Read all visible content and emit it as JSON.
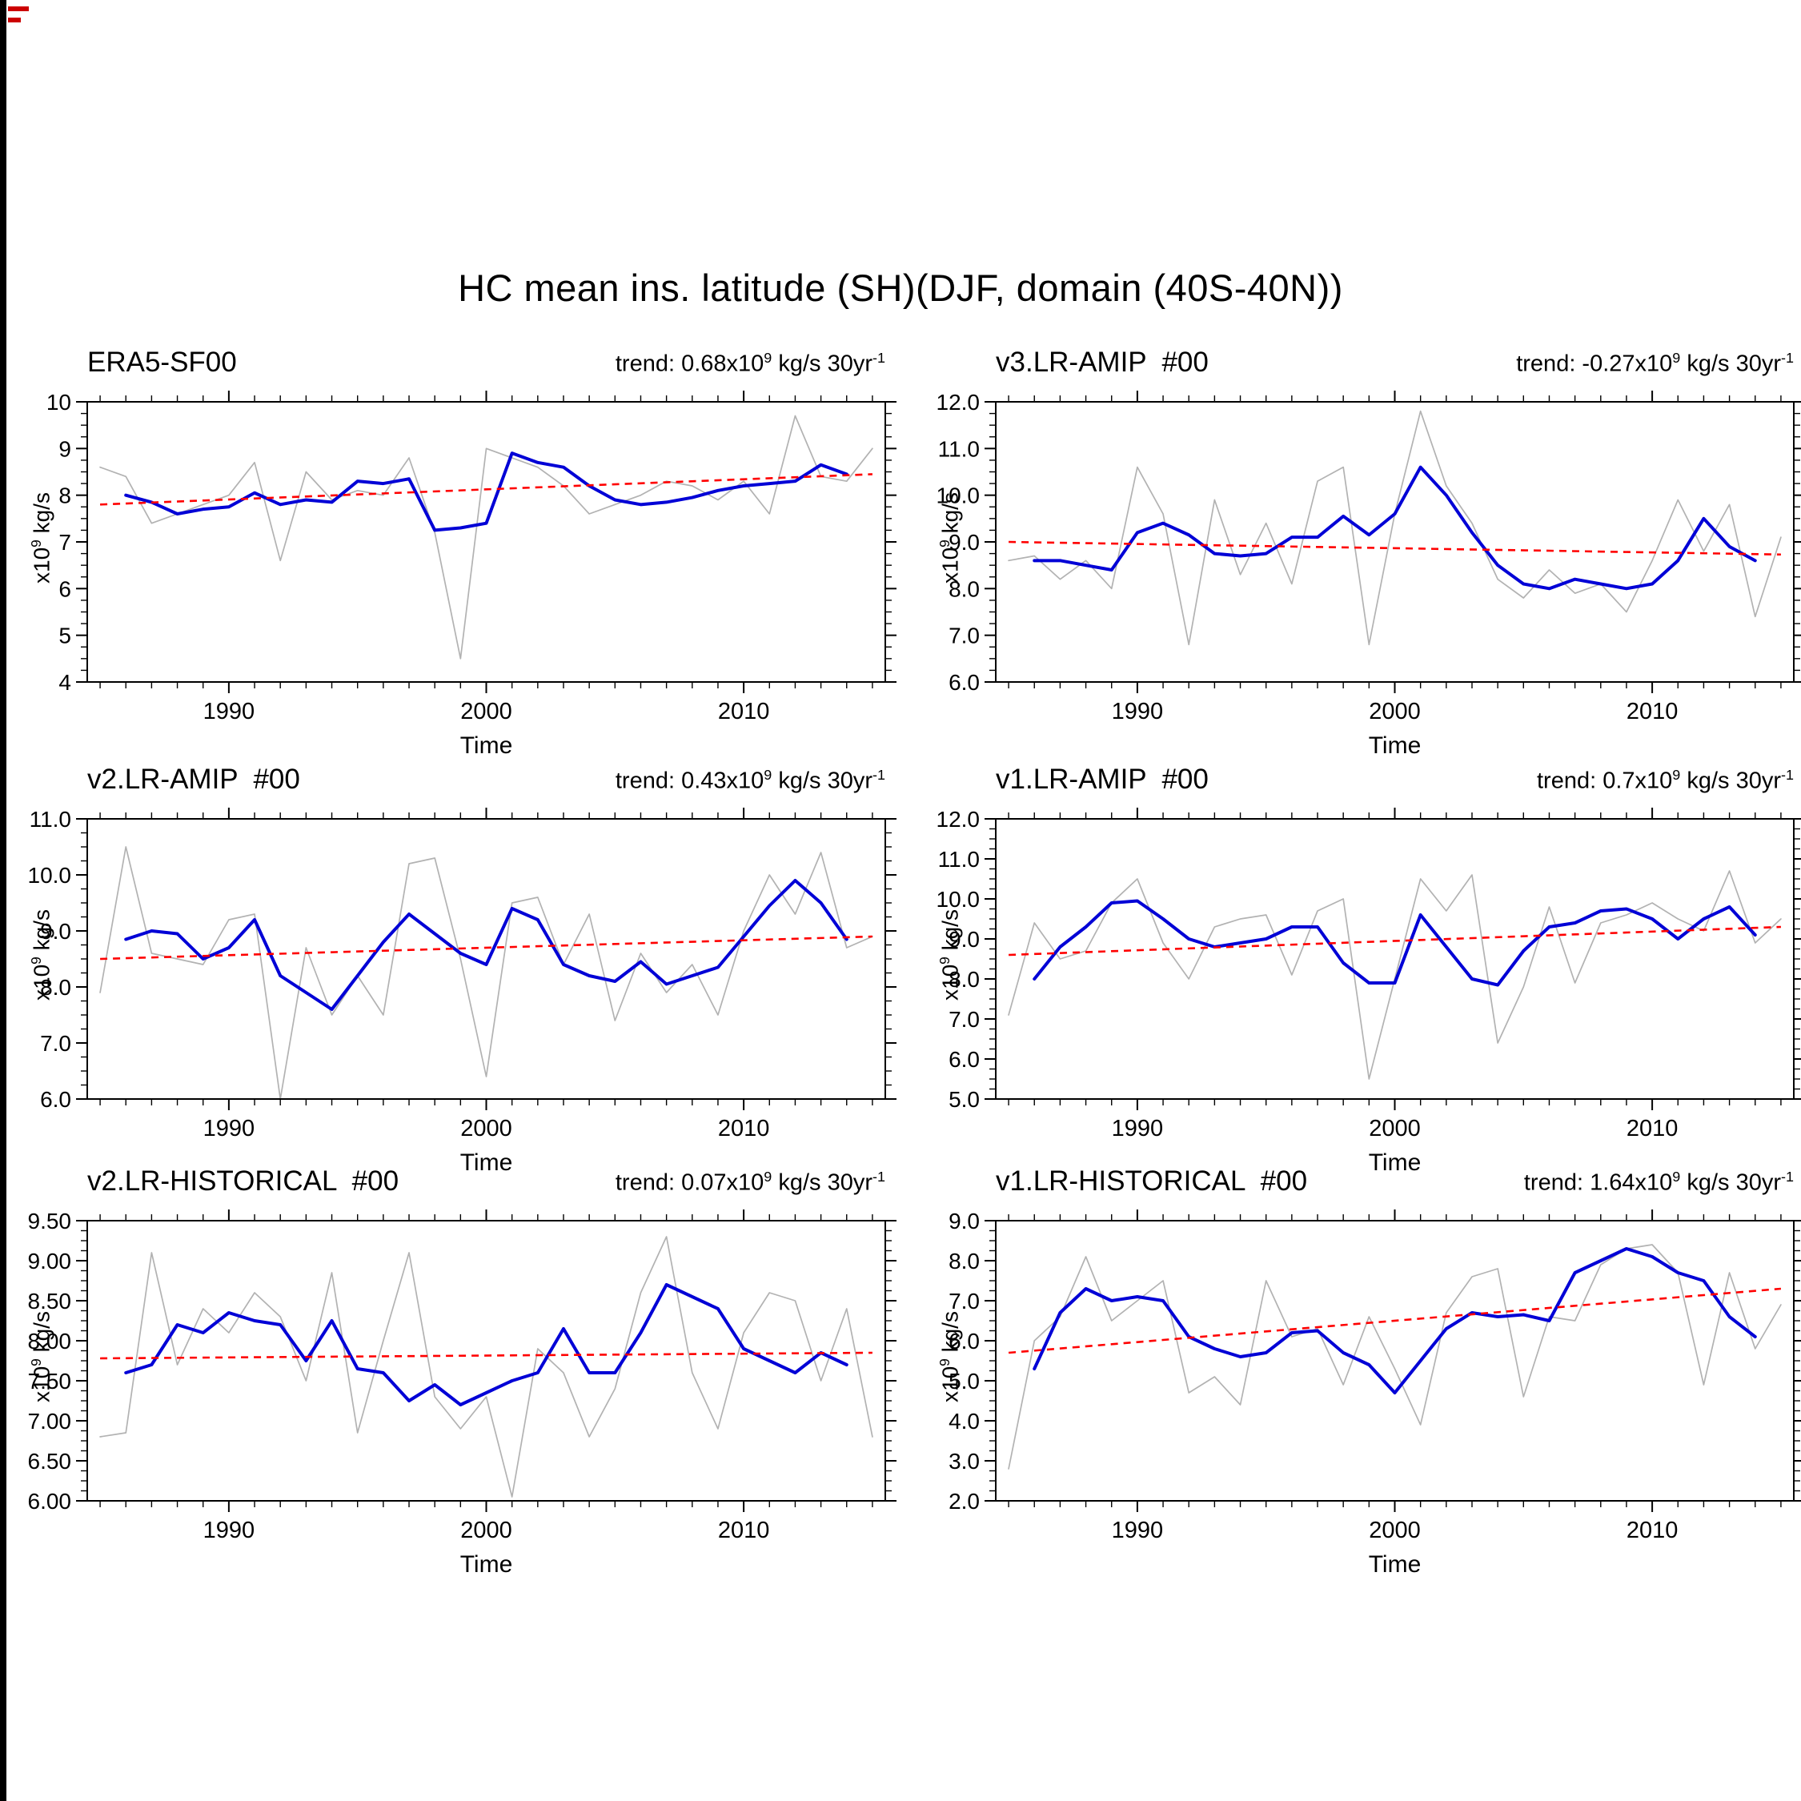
{
  "title": "HC mean ins. latitude (SH)(DJF, domain (40S-40N))",
  "decoration": {
    "left_edge_bar_color": "#000000",
    "corner_mark_color": "#cc0000"
  },
  "colors": {
    "annual_line": "#b2b2b2",
    "smoothed_line": "#0000d6",
    "trend_line": "#ff0000",
    "frame": "#000000"
  },
  "chart_data": [
    {
      "type": "line",
      "name": "ERA5-SF00",
      "trend_parts": [
        "trend: 0.68x10",
        "9",
        " kg/s 30yr",
        "-1"
      ],
      "xlabel": "Time",
      "ylabel_parts": [
        "x10",
        "9",
        " kg/s"
      ],
      "xlim": [
        1984.5,
        2015.5
      ],
      "xticks": [
        1990,
        2000,
        2010
      ],
      "xminor_step": 1,
      "ylim": [
        4,
        10
      ],
      "yticks": [
        4,
        5,
        6,
        7,
        8,
        9,
        10
      ],
      "ytick_labels": [
        "4",
        "5",
        "6",
        "7",
        "8",
        "9",
        "10"
      ],
      "yminor_step": 0.25,
      "series": [
        {
          "name": "annual",
          "color": "#b2b2b2",
          "width": 1.7,
          "x_start": 1985,
          "values": [
            8.6,
            8.4,
            7.4,
            7.6,
            7.8,
            8.0,
            8.7,
            6.6,
            8.5,
            7.9,
            8.1,
            8.0,
            8.8,
            7.2,
            4.5,
            9.0,
            8.8,
            8.6,
            8.2,
            7.6,
            7.8,
            8.0,
            8.3,
            8.2,
            7.9,
            8.3,
            7.6,
            9.7,
            8.4,
            8.3,
            9.0
          ]
        },
        {
          "name": "smoothed",
          "color": "#0000d6",
          "width": 4,
          "x_start": 1986,
          "values": [
            8.0,
            7.85,
            7.6,
            7.7,
            7.75,
            8.05,
            7.8,
            7.9,
            7.85,
            8.3,
            8.25,
            8.35,
            7.25,
            7.3,
            7.4,
            8.9,
            8.7,
            8.6,
            8.2,
            7.9,
            7.8,
            7.85,
            7.95,
            8.1,
            8.2,
            8.25,
            8.3,
            8.65,
            8.45
          ]
        }
      ],
      "trend_line": {
        "color": "#ff0000",
        "style": "dashed",
        "x": [
          1985,
          2015
        ],
        "y": [
          7.8,
          8.45
        ]
      }
    },
    {
      "type": "line",
      "name": "v3.LR-AMIP  #00",
      "trend_parts": [
        "trend: -0.27x10",
        "9",
        " kg/s 30yr",
        "-1"
      ],
      "xlabel": "Time",
      "ylabel_parts": [
        "x10",
        "9",
        " kg/s"
      ],
      "xlim": [
        1984.5,
        2015.5
      ],
      "xticks": [
        1990,
        2000,
        2010
      ],
      "xminor_step": 1,
      "ylim": [
        6,
        12
      ],
      "yticks": [
        6,
        7,
        8,
        9,
        10,
        11,
        12
      ],
      "ytick_labels": [
        "6.0",
        "7.0",
        "8.0",
        "9.0",
        "10.0",
        "11.0",
        "12.0"
      ],
      "yminor_step": 0.25,
      "series": [
        {
          "name": "annual",
          "color": "#b2b2b2",
          "width": 1.7,
          "x_start": 1985,
          "values": [
            8.6,
            8.7,
            8.2,
            8.6,
            8.0,
            10.6,
            9.6,
            6.8,
            9.9,
            8.3,
            9.4,
            8.1,
            10.3,
            10.6,
            6.8,
            9.6,
            11.8,
            10.2,
            9.4,
            8.2,
            7.8,
            8.4,
            7.9,
            8.1,
            7.5,
            8.6,
            9.9,
            8.8,
            9.8,
            7.4,
            9.1
          ]
        },
        {
          "name": "smoothed",
          "color": "#0000d6",
          "width": 4,
          "x_start": 1986,
          "values": [
            8.6,
            8.6,
            8.5,
            8.4,
            9.2,
            9.4,
            9.15,
            8.75,
            8.7,
            8.75,
            9.1,
            9.1,
            9.55,
            9.15,
            9.6,
            10.6,
            10.0,
            9.2,
            8.5,
            8.1,
            8.0,
            8.2,
            8.1,
            8.0,
            8.1,
            8.6,
            9.5,
            8.9,
            8.6
          ]
        }
      ],
      "trend_line": {
        "color": "#ff0000",
        "style": "dashed",
        "x": [
          1985,
          2015
        ],
        "y": [
          9.0,
          8.73
        ]
      }
    },
    {
      "type": "line",
      "name": "v2.LR-AMIP  #00",
      "trend_parts": [
        "trend: 0.43x10",
        "9",
        " kg/s 30yr",
        "-1"
      ],
      "xlabel": "Time",
      "ylabel_parts": [
        "x10",
        "9",
        " kg/s"
      ],
      "xlim": [
        1984.5,
        2015.5
      ],
      "xticks": [
        1990,
        2000,
        2010
      ],
      "xminor_step": 1,
      "ylim": [
        6,
        11
      ],
      "yticks": [
        6,
        7,
        8,
        9,
        10,
        11
      ],
      "ytick_labels": [
        "6.0",
        "7.0",
        "8.0",
        "9.0",
        "10.0",
        "11.0"
      ],
      "yminor_step": 0.25,
      "series": [
        {
          "name": "annual",
          "color": "#b2b2b2",
          "width": 1.7,
          "x_start": 1985,
          "values": [
            7.9,
            10.5,
            8.6,
            8.5,
            8.4,
            9.2,
            9.3,
            6.0,
            8.7,
            7.5,
            8.2,
            7.5,
            10.2,
            10.3,
            8.5,
            6.4,
            9.5,
            9.6,
            8.4,
            9.3,
            7.4,
            8.6,
            7.9,
            8.4,
            7.5,
            9.0,
            10.0,
            9.3,
            10.4,
            8.7,
            8.9
          ]
        },
        {
          "name": "smoothed",
          "color": "#0000d6",
          "width": 4,
          "x_start": 1986,
          "values": [
            8.85,
            9.0,
            8.95,
            8.5,
            8.7,
            9.2,
            8.2,
            7.9,
            7.6,
            8.2,
            8.8,
            9.3,
            8.95,
            8.6,
            8.4,
            9.4,
            9.2,
            8.4,
            8.2,
            8.1,
            8.45,
            8.05,
            8.2,
            8.35,
            8.9,
            9.45,
            9.9,
            9.5,
            8.85
          ]
        }
      ],
      "trend_line": {
        "color": "#ff0000",
        "style": "dashed",
        "x": [
          1985,
          2015
        ],
        "y": [
          8.5,
          8.9
        ]
      }
    },
    {
      "type": "line",
      "name": "v1.LR-AMIP  #00",
      "trend_parts": [
        "trend: 0.7x10",
        "9",
        " kg/s 30yr",
        "-1"
      ],
      "xlabel": "Time",
      "ylabel_parts": [
        "x10",
        "9",
        " kg/s"
      ],
      "xlim": [
        1984.5,
        2015.5
      ],
      "xticks": [
        1990,
        2000,
        2010
      ],
      "xminor_step": 1,
      "ylim": [
        5,
        12
      ],
      "yticks": [
        5,
        6,
        7,
        8,
        9,
        10,
        11,
        12
      ],
      "ytick_labels": [
        "5.0",
        "6.0",
        "7.0",
        "8.0",
        "9.0",
        "10.0",
        "11.0",
        "12.0"
      ],
      "yminor_step": 0.25,
      "series": [
        {
          "name": "annual",
          "color": "#b2b2b2",
          "width": 1.7,
          "x_start": 1985,
          "values": [
            7.1,
            9.4,
            8.5,
            8.7,
            9.9,
            10.5,
            8.9,
            8.0,
            9.3,
            9.5,
            9.6,
            8.1,
            9.7,
            10.0,
            5.5,
            8.0,
            10.5,
            9.7,
            10.6,
            6.4,
            7.8,
            9.8,
            7.9,
            9.4,
            9.6,
            9.9,
            9.5,
            9.2,
            10.7,
            8.9,
            9.5
          ]
        },
        {
          "name": "smoothed",
          "color": "#0000d6",
          "width": 4,
          "x_start": 1986,
          "values": [
            8.0,
            8.8,
            9.3,
            9.9,
            9.95,
            9.5,
            9.0,
            8.8,
            8.9,
            9.0,
            9.3,
            9.3,
            8.4,
            7.9,
            7.9,
            9.6,
            8.8,
            8.0,
            7.85,
            8.7,
            9.3,
            9.4,
            9.7,
            9.75,
            9.5,
            9.0,
            9.5,
            9.8,
            9.1
          ]
        }
      ],
      "trend_line": {
        "color": "#ff0000",
        "style": "dashed",
        "x": [
          1985,
          2015
        ],
        "y": [
          8.6,
          9.3
        ]
      }
    },
    {
      "type": "line",
      "name": "v2.LR-HISTORICAL  #00",
      "trend_parts": [
        "trend: 0.07x10",
        "9",
        " kg/s 30yr",
        "-1"
      ],
      "xlabel": "Time",
      "ylabel_parts": [
        "x10",
        "9",
        " kg/s"
      ],
      "xlim": [
        1984.5,
        2015.5
      ],
      "xticks": [
        1990,
        2000,
        2010
      ],
      "xminor_step": 1,
      "ylim": [
        6,
        9.5
      ],
      "yticks": [
        6,
        6.5,
        7,
        7.5,
        8,
        8.5,
        9,
        9.5
      ],
      "ytick_labels": [
        "6.00",
        "6.50",
        "7.00",
        "7.50",
        "8.00",
        "8.50",
        "9.00",
        "9.50"
      ],
      "yminor_step": 0.125,
      "series": [
        {
          "name": "annual",
          "color": "#b2b2b2",
          "width": 1.7,
          "x_start": 1985,
          "values": [
            6.8,
            6.85,
            9.1,
            7.7,
            8.4,
            8.1,
            8.6,
            8.3,
            7.5,
            8.85,
            6.85,
            8.0,
            9.1,
            7.3,
            6.9,
            7.3,
            6.05,
            7.9,
            7.6,
            6.8,
            7.4,
            8.6,
            9.3,
            7.6,
            6.9,
            8.1,
            8.6,
            8.5,
            7.5,
            8.4,
            6.8
          ]
        },
        {
          "name": "smoothed",
          "color": "#0000d6",
          "width": 4,
          "x_start": 1986,
          "values": [
            7.6,
            7.7,
            8.2,
            8.1,
            8.35,
            8.25,
            8.2,
            7.75,
            8.25,
            7.65,
            7.6,
            7.25,
            7.45,
            7.2,
            7.35,
            7.5,
            7.6,
            8.15,
            7.6,
            7.6,
            8.1,
            8.7,
            8.55,
            8.4,
            7.9,
            7.75,
            7.6,
            7.85,
            7.7
          ]
        }
      ],
      "trend_line": {
        "color": "#ff0000",
        "style": "dashed",
        "x": [
          1985,
          2015
        ],
        "y": [
          7.78,
          7.85
        ]
      }
    },
    {
      "type": "line",
      "name": "v1.LR-HISTORICAL  #00",
      "trend_parts": [
        "trend: 1.64x10",
        "9",
        " kg/s 30yr",
        "-1"
      ],
      "xlabel": "Time",
      "ylabel_parts": [
        "x10",
        "9",
        " kg/s"
      ],
      "xlim": [
        1984.5,
        2015.5
      ],
      "xticks": [
        1990,
        2000,
        2010
      ],
      "xminor_step": 1,
      "ylim": [
        2,
        9
      ],
      "yticks": [
        2,
        3,
        4,
        5,
        6,
        7,
        8,
        9
      ],
      "ytick_labels": [
        "2.0",
        "3.0",
        "4.0",
        "5.0",
        "6.0",
        "7.0",
        "8.0",
        "9.0"
      ],
      "yminor_step": 0.25,
      "series": [
        {
          "name": "annual",
          "color": "#b2b2b2",
          "width": 1.7,
          "x_start": 1985,
          "values": [
            2.8,
            6.0,
            6.6,
            8.1,
            6.5,
            7.0,
            7.5,
            4.7,
            5.1,
            4.4,
            7.5,
            6.1,
            6.3,
            4.9,
            6.6,
            5.3,
            3.9,
            6.7,
            7.6,
            7.8,
            4.6,
            6.6,
            6.5,
            7.9,
            8.3,
            8.4,
            7.7,
            4.9,
            7.7,
            5.8,
            6.9
          ]
        },
        {
          "name": "smoothed",
          "color": "#0000d6",
          "width": 4,
          "x_start": 1986,
          "values": [
            5.3,
            6.7,
            7.3,
            7.0,
            7.1,
            7.0,
            6.1,
            5.8,
            5.6,
            5.7,
            6.2,
            6.25,
            5.7,
            5.4,
            4.7,
            5.5,
            6.3,
            6.7,
            6.6,
            6.65,
            6.5,
            7.7,
            8.0,
            8.3,
            8.1,
            7.7,
            7.5,
            6.6,
            6.1
          ]
        }
      ],
      "trend_line": {
        "color": "#ff0000",
        "style": "dashed",
        "x": [
          1985,
          2015
        ],
        "y": [
          5.7,
          7.3
        ]
      }
    }
  ]
}
